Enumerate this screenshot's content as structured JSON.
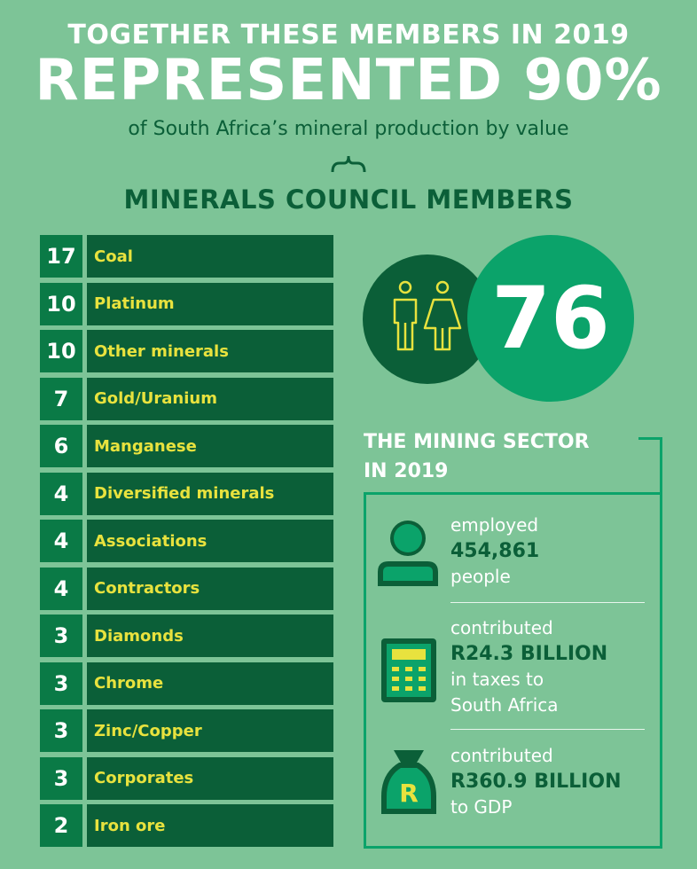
{
  "header": {
    "line1": "TOGETHER THESE MEMBERS IN 2019",
    "line2": "REPRESENTED 90%",
    "line3": "of South Africa’s mineral production by value"
  },
  "council": {
    "title": "MINERALS COUNCIL MEMBERS",
    "total": "76",
    "rows": [
      {
        "count": "17",
        "label": "Coal"
      },
      {
        "count": "10",
        "label": "Platinum"
      },
      {
        "count": "10",
        "label": "Other minerals"
      },
      {
        "count": "7",
        "label": "Gold/Uranium"
      },
      {
        "count": "6",
        "label": "Manganese"
      },
      {
        "count": "4",
        "label": "Diversified minerals"
      },
      {
        "count": "4",
        "label": "Associations"
      },
      {
        "count": "4",
        "label": "Contractors"
      },
      {
        "count": "3",
        "label": "Diamonds"
      },
      {
        "count": "3",
        "label": "Chrome"
      },
      {
        "count": "3",
        "label": "Zinc/Copper"
      },
      {
        "count": "3",
        "label": "Corporates"
      },
      {
        "count": "2",
        "label": "Iron ore"
      }
    ]
  },
  "sector": {
    "title_line1": "THE MINING SECTOR",
    "title_line2": "IN 2019",
    "stats": [
      {
        "icon": "person-icon",
        "pre": "employed",
        "value": "454,861",
        "post": [
          "people"
        ]
      },
      {
        "icon": "calculator-icon",
        "pre": "contributed",
        "value": "R24.3 BILLION",
        "post": [
          "in taxes to",
          "South Africa"
        ]
      },
      {
        "icon": "money-bag-icon",
        "pre": "contributed",
        "value": "R360.9 BILLION",
        "post": [
          "to GDP"
        ]
      }
    ]
  },
  "colors": {
    "background": "#7dc497",
    "dark_green": "#0b5f38",
    "mid_green": "#0a7a46",
    "bright_green": "#0ba36a",
    "label_yellow": "#e8e23e"
  }
}
